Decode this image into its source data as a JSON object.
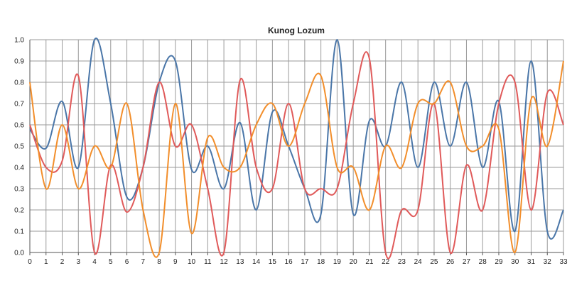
{
  "chart_data": {
    "type": "line",
    "title": "Kunog Lozum",
    "xlabel": "",
    "ylabel": "",
    "xlim": [
      0,
      33
    ],
    "ylim": [
      0.0,
      1.0
    ],
    "x": [
      0,
      1,
      2,
      3,
      4,
      5,
      6,
      7,
      8,
      9,
      10,
      11,
      12,
      13,
      14,
      15,
      16,
      17,
      18,
      19,
      20,
      21,
      22,
      23,
      24,
      25,
      26,
      27,
      28,
      29,
      30,
      31,
      32,
      33
    ],
    "x_tick_labels": [
      "0",
      "1",
      "2",
      "3",
      "4",
      "5",
      "6",
      "7",
      "8",
      "9",
      "10",
      "11",
      "12",
      "13",
      "14",
      "15",
      "16",
      "17",
      "18",
      "19",
      "20",
      "21",
      "22",
      "23",
      "24",
      "25",
      "26",
      "27",
      "28",
      "29",
      "30",
      "31",
      "32",
      "33"
    ],
    "y_ticks": [
      0.0,
      0.1,
      0.2,
      0.3,
      0.4,
      0.5,
      0.6,
      0.7,
      0.8,
      0.9,
      1.0
    ],
    "y_tick_labels": [
      "0.0",
      "0.1",
      "0.2",
      "0.3",
      "0.4",
      "0.5",
      "0.6",
      "0.7",
      "0.8",
      "0.9",
      "1.0"
    ],
    "grid": true,
    "smooth": true,
    "series": [
      {
        "color": "#4a76a8",
        "values": [
          0.58,
          0.49,
          0.71,
          0.4,
          1.0,
          0.7,
          0.26,
          0.4,
          0.8,
          0.9,
          0.39,
          0.5,
          0.3,
          0.61,
          0.2,
          0.66,
          0.5,
          0.3,
          0.18,
          1.0,
          0.18,
          0.62,
          0.5,
          0.8,
          0.4,
          0.8,
          0.5,
          0.8,
          0.4,
          0.71,
          0.1,
          0.9,
          0.1,
          0.2
        ]
      },
      {
        "color": "#e05a5a",
        "values": [
          0.6,
          0.4,
          0.43,
          0.83,
          0.0,
          0.41,
          0.19,
          0.4,
          0.8,
          0.5,
          0.6,
          0.3,
          0.0,
          0.81,
          0.4,
          0.3,
          0.7,
          0.3,
          0.3,
          0.3,
          0.7,
          0.91,
          0.0,
          0.2,
          0.2,
          0.7,
          0.0,
          0.41,
          0.2,
          0.7,
          0.8,
          0.2,
          0.75,
          0.6
        ]
      },
      {
        "color": "#f28e2b",
        "values": [
          0.8,
          0.3,
          0.6,
          0.3,
          0.5,
          0.4,
          0.7,
          0.2,
          0.0,
          0.7,
          0.09,
          0.54,
          0.4,
          0.4,
          0.6,
          0.7,
          0.5,
          0.7,
          0.83,
          0.4,
          0.4,
          0.2,
          0.5,
          0.4,
          0.7,
          0.7,
          0.8,
          0.5,
          0.5,
          0.58,
          0.0,
          0.72,
          0.5,
          0.9
        ]
      }
    ]
  }
}
